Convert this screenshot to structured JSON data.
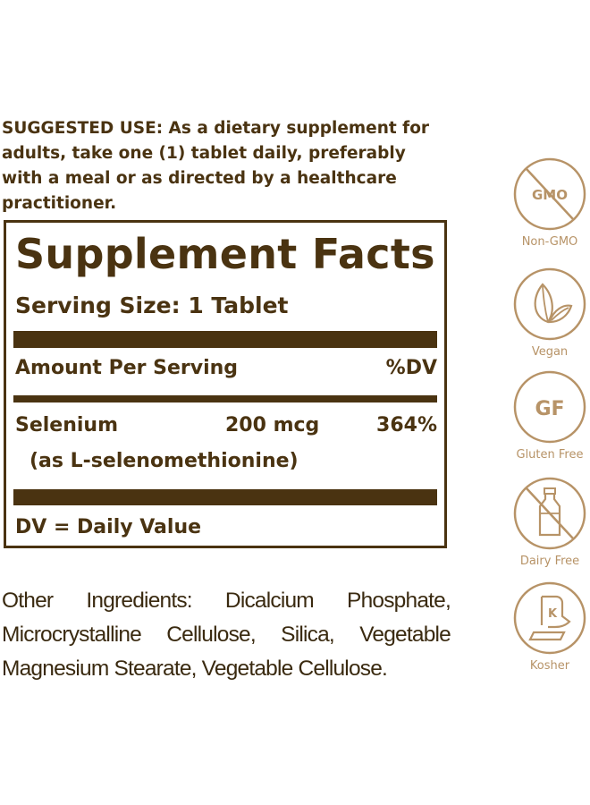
{
  "suggested_use": "SUGGESTED USE: As a dietary supplement for adults, take one (1) tablet daily, preferably with a meal or as directed by a healthcare practitioner.",
  "facts": {
    "title": "Supplement Facts",
    "serving_size": "Serving Size: 1 Tablet",
    "amount_per_serving": "Amount Per Serving",
    "dv_header": "%DV",
    "nutrients": [
      {
        "name": "Selenium",
        "amount": "200 mcg",
        "dv": "364%",
        "source": "(as L-selenomethionine)"
      }
    ],
    "footnote": "DV = Daily Value"
  },
  "other_ingredients": "Other Ingredients: Dicalcium Phosphate, Microcrystalline Cellulose, Silica, Vegetable Magnesium Stearate, Vegetable Cellulose.",
  "badges": [
    {
      "icon": "gmo-crossed-icon",
      "icon_text": "GMO",
      "label": "Non-GMO"
    },
    {
      "icon": "leaf-icon",
      "label": "Vegan"
    },
    {
      "icon": "gf-icon",
      "icon_text": "GF",
      "label": "Gluten Free"
    },
    {
      "icon": "milk-bottle-crossed-icon",
      "label": "Dairy Free"
    },
    {
      "icon": "kosher-icon",
      "icon_text": "K",
      "label": "Kosher"
    }
  ],
  "colors": {
    "text": "#4a3311",
    "badge": "#b79367"
  }
}
